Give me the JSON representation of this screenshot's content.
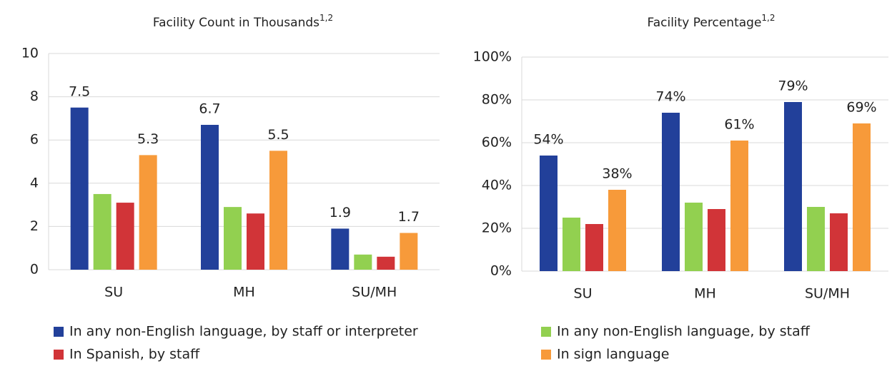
{
  "chart_data": [
    {
      "type": "bar",
      "title": "Facility Count in Thousands",
      "title_note": "1,2",
      "categories": [
        "SU",
        "MH",
        "SU/MH"
      ],
      "series": [
        {
          "name": "In any non-English language, by staff or interpreter",
          "color": "#22409a",
          "values": [
            7.5,
            6.7,
            1.9
          ],
          "show_labels": true
        },
        {
          "name": "In any non-English language, by staff",
          "color": "#92d050",
          "values": [
            3.5,
            2.9,
            0.7
          ],
          "show_labels": false
        },
        {
          "name": "In Spanish, by staff",
          "color": "#d13438",
          "values": [
            3.1,
            2.6,
            0.6
          ],
          "show_labels": false
        },
        {
          "name": "In sign language",
          "color": "#f79a3a",
          "values": [
            5.3,
            5.5,
            1.7
          ],
          "show_labels": true
        }
      ],
      "ylim": [
        0,
        10
      ],
      "yticks": [
        0,
        2,
        4,
        6,
        8,
        10
      ],
      "grid": true
    },
    {
      "type": "bar",
      "title": "Facility Percentage",
      "title_note": "1,2",
      "categories": [
        "SU",
        "MH",
        "SU/MH"
      ],
      "series": [
        {
          "name": "In any non-English language, by staff or interpreter",
          "color": "#22409a",
          "values": [
            54,
            74,
            79
          ],
          "value_labels": [
            "54%",
            "74%",
            "79%"
          ],
          "show_labels": true
        },
        {
          "name": "In any non-English language, by staff",
          "color": "#92d050",
          "values": [
            25,
            32,
            30
          ],
          "show_labels": false
        },
        {
          "name": "In Spanish, by staff",
          "color": "#d13438",
          "values": [
            22,
            29,
            27
          ],
          "show_labels": false
        },
        {
          "name": "In sign language",
          "color": "#f79a3a",
          "values": [
            38,
            61,
            69
          ],
          "value_labels": [
            "38%",
            "61%",
            "69%"
          ],
          "show_labels": true
        }
      ],
      "ylim": [
        0,
        100
      ],
      "yticks": [
        {
          "value": 0,
          "label": "0%"
        },
        {
          "value": 20,
          "label": "20%"
        },
        {
          "value": 40,
          "label": "40%"
        },
        {
          "value": 60,
          "label": "60%"
        },
        {
          "value": 80,
          "label": "80%"
        },
        {
          "value": 100,
          "label": "100%"
        }
      ],
      "grid": true
    }
  ]
}
